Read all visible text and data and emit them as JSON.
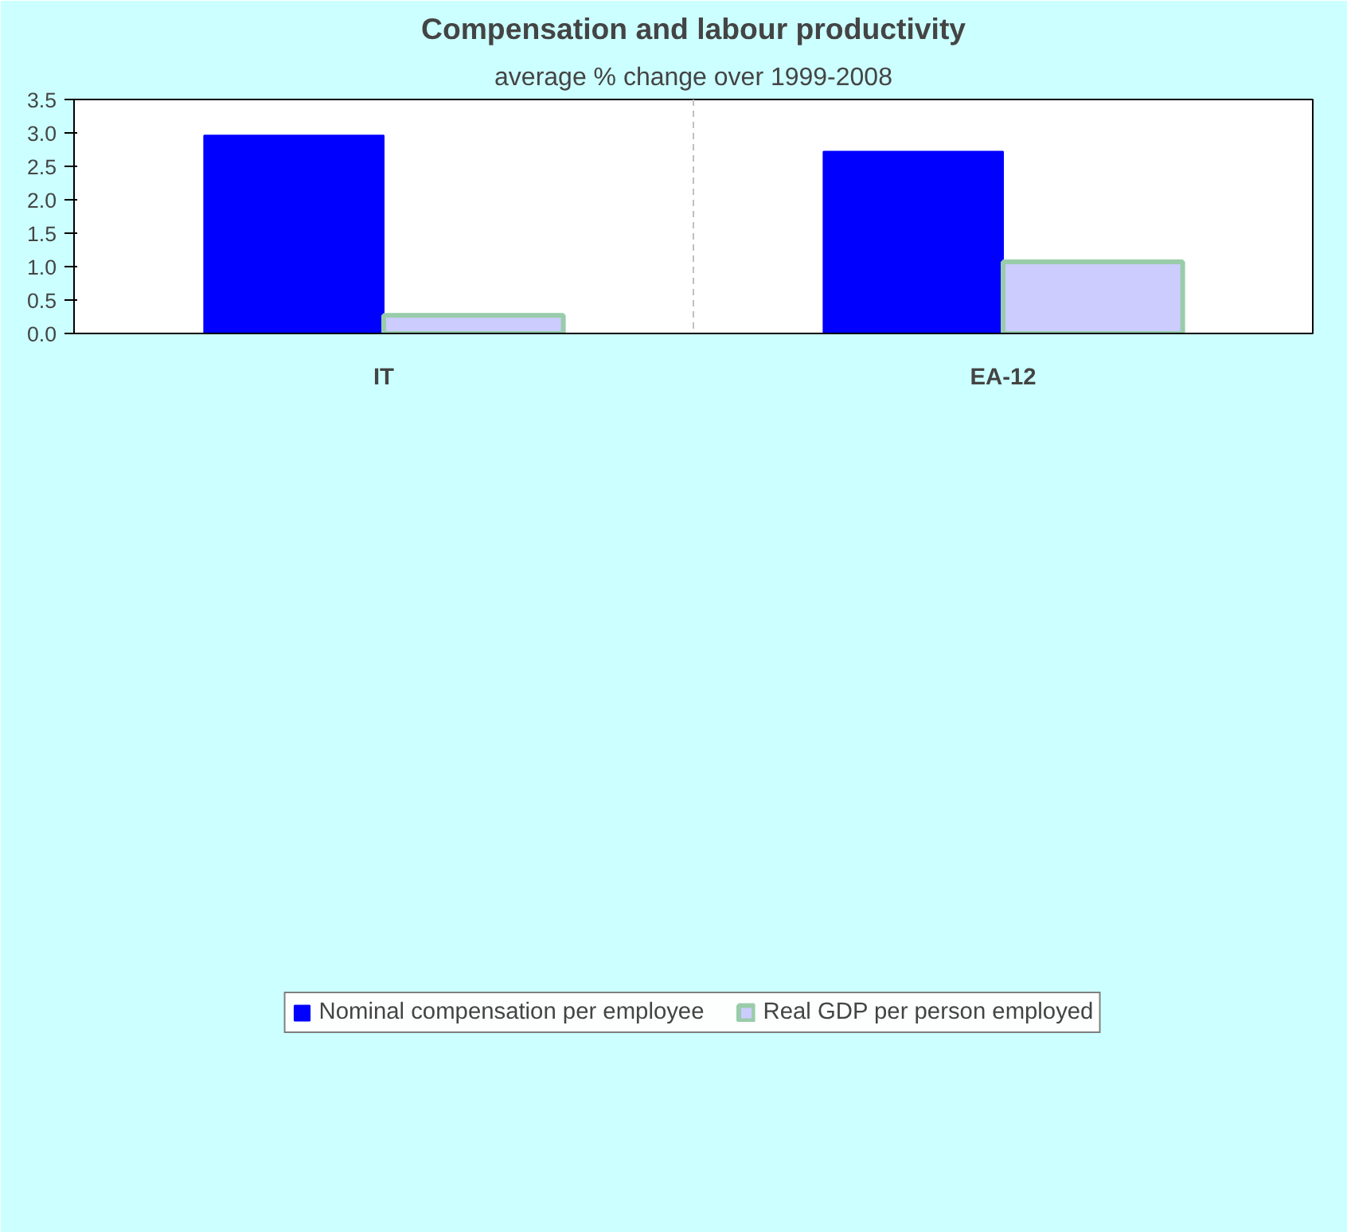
{
  "chart_data": {
    "type": "bar",
    "title": "Compensation and labour productivity",
    "subtitle": "average % change over 1999-2008",
    "categories": [
      "IT",
      "EA-12"
    ],
    "series": [
      {
        "name": "Nominal compensation per employee",
        "color": "#0000ff",
        "values": [
          2.96,
          2.72
        ]
      },
      {
        "name": "Real GDP per person employed",
        "color": "#ccccff",
        "values": [
          0.27,
          1.07
        ]
      }
    ],
    "ylim": [
      0,
      3.5
    ],
    "yticks": [
      {
        "value": 0,
        "label": "0.0"
      },
      0.5,
      {
        "value": 1,
        "label": "1.0"
      },
      1.5,
      {
        "value": 2,
        "label": "2.0"
      },
      2.5,
      {
        "value": 3,
        "label": "3.0"
      },
      3.5
    ],
    "grid": "x",
    "legend": "bottom"
  }
}
